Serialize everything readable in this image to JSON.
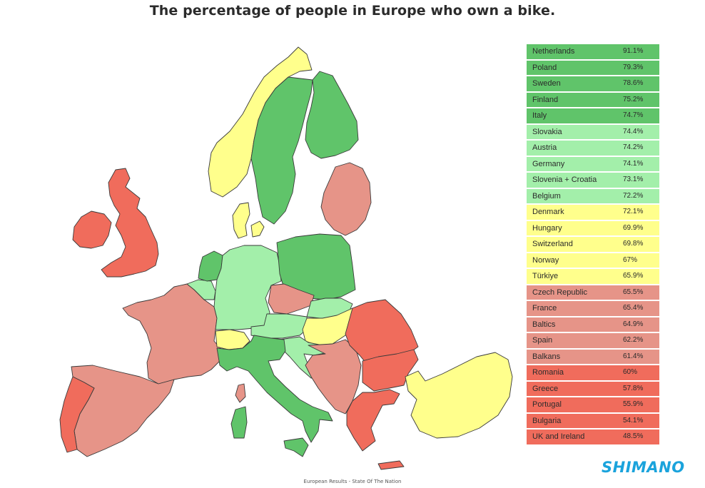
{
  "title": "The percentage of people in Europe who own a bike.",
  "footer": "European Results - State Of The Nation",
  "brand": {
    "logo_text": "SHIMANO",
    "color": "#1aa3dc"
  },
  "colors": {
    "tier_high": "#60c46a",
    "tier_upper": "#a3efaa",
    "tier_mid": "#ffff8c",
    "tier_lower": "#e69488",
    "tier_low": "#f06c5c"
  },
  "chart_data": {
    "type": "table",
    "title": "The percentage of people in Europe who own a bike.",
    "unit": "%",
    "rows": [
      {
        "name": "Netherlands",
        "value": 91.1,
        "label": "91.1%",
        "tier": "high"
      },
      {
        "name": "Poland",
        "value": 79.3,
        "label": "79.3%",
        "tier": "high"
      },
      {
        "name": "Sweden",
        "value": 78.6,
        "label": "78.6%",
        "tier": "high"
      },
      {
        "name": "Finland",
        "value": 75.2,
        "label": "75.2%",
        "tier": "high"
      },
      {
        "name": "Italy",
        "value": 74.7,
        "label": "74.7%",
        "tier": "high"
      },
      {
        "name": "Slovakia",
        "value": 74.4,
        "label": "74.4%",
        "tier": "upper"
      },
      {
        "name": "Austria",
        "value": 74.2,
        "label": "74.2%",
        "tier": "upper"
      },
      {
        "name": "Germany",
        "value": 74.1,
        "label": "74.1%",
        "tier": "upper"
      },
      {
        "name": "Slovenia + Croatia",
        "value": 73.1,
        "label": "73.1%",
        "tier": "upper"
      },
      {
        "name": "Belgium",
        "value": 72.2,
        "label": "72.2%",
        "tier": "upper"
      },
      {
        "name": "Denmark",
        "value": 72.1,
        "label": "72.1%",
        "tier": "mid"
      },
      {
        "name": "Hungary",
        "value": 69.9,
        "label": "69.9%",
        "tier": "mid"
      },
      {
        "name": "Switzerland",
        "value": 69.8,
        "label": "69.8%",
        "tier": "mid"
      },
      {
        "name": "Norway",
        "value": 67,
        "label": "67%",
        "tier": "mid"
      },
      {
        "name": "Türkiye",
        "value": 65.9,
        "label": "65.9%",
        "tier": "mid"
      },
      {
        "name": "Czech Republic",
        "value": 65.5,
        "label": "65.5%",
        "tier": "lower"
      },
      {
        "name": "France",
        "value": 65.4,
        "label": "65.4%",
        "tier": "lower"
      },
      {
        "name": "Baltics",
        "value": 64.9,
        "label": "64.9%",
        "tier": "lower"
      },
      {
        "name": "Spain",
        "value": 62.2,
        "label": "62.2%",
        "tier": "lower"
      },
      {
        "name": "Balkans",
        "value": 61.4,
        "label": "61.4%",
        "tier": "lower"
      },
      {
        "name": "Romania",
        "value": 60,
        "label": "60%",
        "tier": "low"
      },
      {
        "name": "Greece",
        "value": 57.8,
        "label": "57.8%",
        "tier": "low"
      },
      {
        "name": "Portugal",
        "value": 55.9,
        "label": "55.9%",
        "tier": "low"
      },
      {
        "name": "Bulgaria",
        "value": 54.1,
        "label": "54.1%",
        "tier": "low"
      },
      {
        "name": "UK and Ireland",
        "value": 48.5,
        "label": "48.5%",
        "tier": "low"
      }
    ]
  }
}
